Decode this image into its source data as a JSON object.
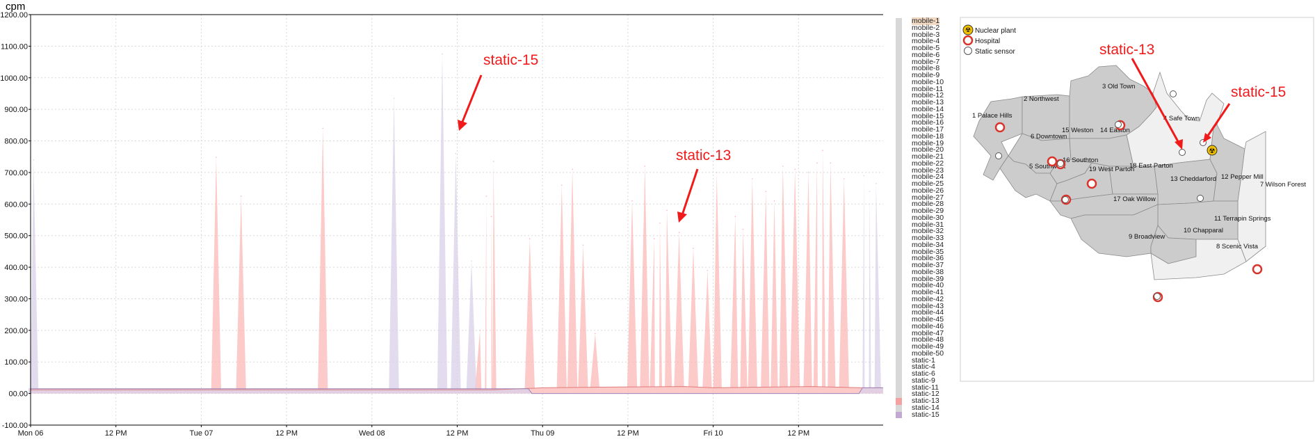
{
  "chart_data": {
    "type": "area",
    "ylabel": "cpm",
    "ylim": [
      -100,
      1200
    ],
    "yticks": [
      -100,
      0,
      100,
      200,
      300,
      400,
      500,
      600,
      700,
      800,
      900,
      1000,
      1100,
      1200
    ],
    "ytick_labels": [
      "-100.00",
      "00.00",
      "100.00",
      "200.00",
      "300.00",
      "400.00",
      "500.00",
      "600.00",
      "700.00",
      "800.00",
      "900.00",
      "1000.00",
      "1100.00",
      "1200.00"
    ],
    "x_unit": "hours since Mon 06 00:00",
    "xlim": [
      0,
      120
    ],
    "xticks": [
      0,
      12,
      24,
      36,
      48,
      60,
      72,
      84,
      96,
      108
    ],
    "xtick_labels": [
      "Mon 06",
      "12 PM",
      "Tue 07",
      "12 PM",
      "Wed 08",
      "12 PM",
      "Thu 09",
      "12 PM",
      "Fri 10",
      "12 PM"
    ],
    "grid": true,
    "series": [
      {
        "name": "static-13",
        "color": "#fbb4b0",
        "baseline": {
          "segments": [
            [
              0,
              12
            ],
            [
              34,
              12
            ],
            [
              56,
              12
            ],
            [
              65,
              12
            ],
            [
              69,
              15
            ],
            [
              72,
              18
            ],
            [
              80,
              20
            ],
            [
              92,
              22
            ],
            [
              96,
              18
            ],
            [
              110,
              22
            ],
            [
              117,
              18
            ],
            [
              120,
              18
            ]
          ]
        },
        "peaks": [
          [
            26.1,
            748
          ],
          [
            29.6,
            625
          ],
          [
            41.1,
            840
          ],
          [
            63.2,
            200
          ],
          [
            64.1,
            625
          ],
          [
            64.8,
            560
          ],
          [
            65.1,
            735
          ],
          [
            70.2,
            490
          ],
          [
            74.7,
            660
          ],
          [
            76.2,
            710
          ],
          [
            77.7,
            470
          ],
          [
            79.4,
            190
          ],
          [
            84.6,
            610
          ],
          [
            86.4,
            720
          ],
          [
            87.7,
            490
          ],
          [
            88.5,
            540
          ],
          [
            89.5,
            580
          ],
          [
            91.2,
            510
          ],
          [
            93.2,
            460
          ],
          [
            95.2,
            390
          ],
          [
            96.5,
            700
          ],
          [
            99.1,
            560
          ],
          [
            100.2,
            520
          ],
          [
            101.5,
            680
          ],
          [
            103.4,
            640
          ],
          [
            104.6,
            610
          ],
          [
            105.8,
            720
          ],
          [
            107.5,
            710
          ],
          [
            109.4,
            700
          ],
          [
            110.6,
            730
          ],
          [
            111.4,
            770
          ],
          [
            112.5,
            730
          ],
          [
            114.4,
            680
          ]
        ]
      },
      {
        "name": "static-15",
        "color": "#d9d0ea",
        "baseline": {
          "segments": [
            [
              0,
              15
            ],
            [
              70,
              15
            ],
            [
              70.5,
              0
            ],
            [
              116.5,
              0
            ],
            [
              117,
              18
            ],
            [
              120,
              18
            ]
          ]
        },
        "peaks": [
          [
            0.4,
            740
          ],
          [
            51.1,
            935
          ],
          [
            57.9,
            1075
          ],
          [
            59.8,
            760
          ],
          [
            62.0,
            420
          ],
          [
            117.2,
            690
          ],
          [
            118.0,
            640
          ],
          [
            118.9,
            665
          ]
        ]
      }
    ],
    "annotations": [
      {
        "text": "static-15",
        "position": "upper-middle"
      },
      {
        "text": "static-13",
        "position": "middle-right"
      }
    ],
    "legend": {
      "placement": "right",
      "items": [
        "mobile-1",
        "mobile-2",
        "mobile-3",
        "mobile-4",
        "mobile-5",
        "mobile-6",
        "mobile-7",
        "mobile-8",
        "mobile-9",
        "mobile-10",
        "mobile-11",
        "mobile-12",
        "mobile-13",
        "mobile-14",
        "mobile-15",
        "mobile-16",
        "mobile-17",
        "mobile-18",
        "mobile-19",
        "mobile-20",
        "mobile-21",
        "mobile-22",
        "mobile-23",
        "mobile-24",
        "mobile-25",
        "mobile-26",
        "mobile-27",
        "mobile-28",
        "mobile-29",
        "mobile-30",
        "mobile-31",
        "mobile-32",
        "mobile-33",
        "mobile-34",
        "mobile-35",
        "mobile-36",
        "mobile-37",
        "mobile-38",
        "mobile-39",
        "mobile-40",
        "mobile-41",
        "mobile-42",
        "mobile-43",
        "mobile-44",
        "mobile-45",
        "mobile-46",
        "mobile-47",
        "mobile-48",
        "mobile-49",
        "mobile-50",
        "static-1",
        "static-4",
        "static-6",
        "static-9",
        "static-11",
        "static-12",
        "static-13",
        "static-14",
        "static-15"
      ],
      "active_colors": {
        "static-13": "#f4a1a1",
        "static-15": "#c2a9d4"
      },
      "selected": "mobile-1"
    }
  },
  "map": {
    "legend": [
      {
        "label": "Nuclear plant",
        "icon": "radiation-icon"
      },
      {
        "label": "Hospital",
        "icon": "hospital-icon"
      },
      {
        "label": "Static sensor",
        "icon": "sensor-icon"
      }
    ],
    "regions": [
      {
        "label": "1 Palace Hills"
      },
      {
        "label": "2 Northwest"
      },
      {
        "label": "3 Old Town"
      },
      {
        "label": "4 Safe Town"
      },
      {
        "label": "5 Southwest"
      },
      {
        "label": "6 Downtown"
      },
      {
        "label": "7 Wilson Forest"
      },
      {
        "label": "8 Scenic Vista"
      },
      {
        "label": "9 Broadview"
      },
      {
        "label": "10 Chapparal"
      },
      {
        "label": "11 Terrapin Springs"
      },
      {
        "label": "12 Pepper Mill"
      },
      {
        "label": "13 Cheddarford"
      },
      {
        "label": "14 Easton"
      },
      {
        "label": "15 Weston"
      },
      {
        "label": "16 Southton"
      },
      {
        "label": "17 Oak Willow"
      },
      {
        "label": "18 East Parton"
      },
      {
        "label": "19 West Parton"
      }
    ],
    "callouts": [
      {
        "text": "static-13"
      },
      {
        "text": "static-15"
      }
    ]
  }
}
